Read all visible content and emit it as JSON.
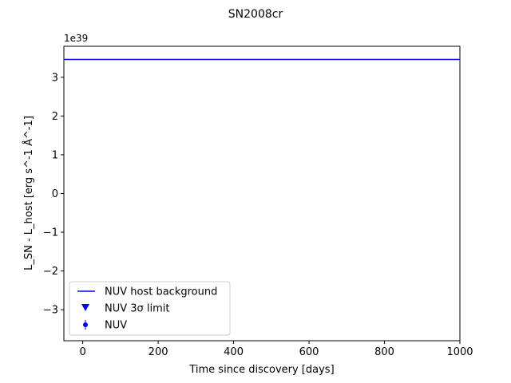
{
  "chart_data": {
    "type": "line",
    "title": "SN2008cr",
    "xlabel": "Time since discovery [days]",
    "ylabel": "L_SN - L_host [erg s^-1 Å^-1]",
    "y_offset_label": "1e39",
    "xlim": [
      -50,
      1000
    ],
    "ylim": [
      -3.8,
      3.8
    ],
    "x_ticks": [
      0,
      200,
      400,
      600,
      800,
      1000
    ],
    "y_ticks": [
      -3,
      -2,
      -1,
      0,
      1,
      2,
      3
    ],
    "y_tick_labels": [
      "−3",
      "−2",
      "−1",
      "0",
      "1",
      "2",
      "3"
    ],
    "grid": false,
    "legend_position": "lower-left",
    "series": [
      {
        "name": "NUV host background",
        "kind": "hline",
        "y": 3.46,
        "color": "#0000ff"
      },
      {
        "name": "NUV 3σ limit",
        "kind": "marker-triangle-down",
        "points": [],
        "color": "#0000ff"
      },
      {
        "name": "NUV",
        "kind": "errorbar-point",
        "points": [],
        "color": "#0000ff"
      }
    ]
  }
}
